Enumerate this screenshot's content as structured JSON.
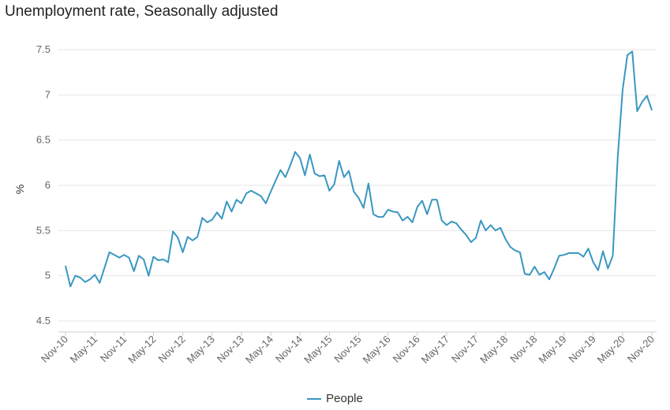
{
  "colors": {
    "series": "#3a97c1",
    "grid": "#e6e6e6",
    "axis": "#cccccc"
  },
  "chart_data": {
    "type": "line",
    "title": "Unemployment rate, Seasonally adjusted",
    "xlabel": "",
    "ylabel": "%",
    "ylim": [
      4.5,
      7.5
    ],
    "yticks": [
      4.5,
      5,
      5.5,
      6,
      6.5,
      7,
      7.5
    ],
    "ytick_labels": [
      "4.5",
      "5",
      "5.5",
      "6",
      "6.5",
      "7",
      "7.5"
    ],
    "x_tick_labels": [
      "Nov-10",
      "May-11",
      "Nov-11",
      "May-12",
      "Nov-12",
      "May-13",
      "Nov-13",
      "May-14",
      "Nov-14",
      "May-15",
      "Nov-15",
      "May-16",
      "Nov-16",
      "May-17",
      "Nov-17",
      "May-18",
      "Nov-18",
      "May-19",
      "Nov-19",
      "May-20",
      "Nov-20"
    ],
    "grid": true,
    "legend": "bottom-center",
    "series": [
      {
        "name": "People",
        "start": "Nov-10",
        "frequency": "monthly",
        "values": [
          5.11,
          4.88,
          5.0,
          4.98,
          4.93,
          4.96,
          5.01,
          4.92,
          5.09,
          5.26,
          5.23,
          5.2,
          5.23,
          5.2,
          5.05,
          5.22,
          5.18,
          5.0,
          5.21,
          5.17,
          5.18,
          5.15,
          5.49,
          5.42,
          5.26,
          5.43,
          5.39,
          5.43,
          5.64,
          5.59,
          5.62,
          5.7,
          5.63,
          5.82,
          5.71,
          5.84,
          5.8,
          5.91,
          5.94,
          5.91,
          5.88,
          5.8,
          5.93,
          6.05,
          6.17,
          6.09,
          6.22,
          6.37,
          6.3,
          6.11,
          6.34,
          6.13,
          6.1,
          6.11,
          5.94,
          6.01,
          6.27,
          6.09,
          6.16,
          5.93,
          5.86,
          5.75,
          6.02,
          5.68,
          5.65,
          5.65,
          5.73,
          5.71,
          5.7,
          5.61,
          5.65,
          5.59,
          5.76,
          5.83,
          5.68,
          5.84,
          5.84,
          5.61,
          5.56,
          5.6,
          5.58,
          5.51,
          5.45,
          5.37,
          5.42,
          5.61,
          5.5,
          5.56,
          5.5,
          5.53,
          5.41,
          5.32,
          5.28,
          5.26,
          5.02,
          5.01,
          5.1,
          5.01,
          5.04,
          4.96,
          5.08,
          5.22,
          5.23,
          5.25,
          5.25,
          5.25,
          5.21,
          5.3,
          5.15,
          5.06,
          5.27,
          5.08,
          5.22,
          6.3,
          7.05,
          7.44,
          7.48,
          6.82,
          6.92,
          6.99,
          6.83
        ]
      }
    ]
  }
}
